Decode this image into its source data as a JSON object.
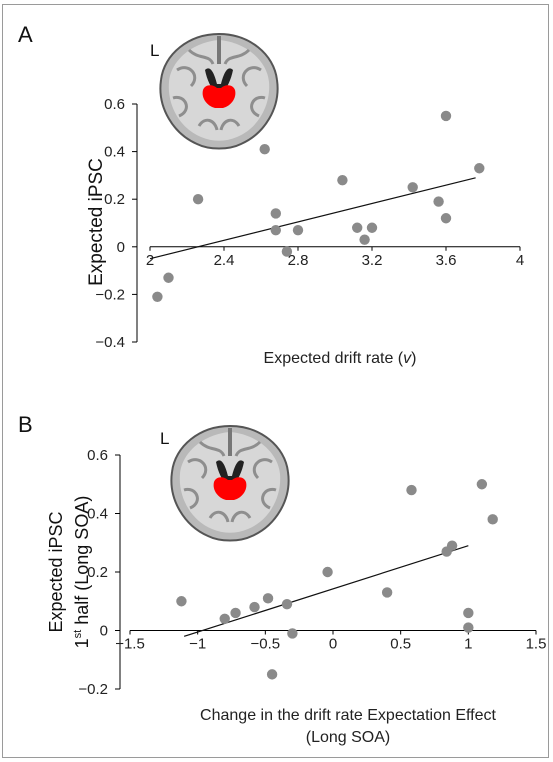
{
  "figure": {
    "border_color": "#9a9a9a"
  },
  "chart_data": [
    {
      "panel": "A",
      "type": "scatter",
      "inset_label": "L",
      "highlight_color": "#ff0000",
      "point_color": "#8a8a8a",
      "xlabel_parts": [
        "Expected drift rate (",
        "v",
        ")"
      ],
      "ylabel": "Expected iPSC",
      "xlim": [
        2,
        4
      ],
      "ylim": [
        -0.4,
        0.6
      ],
      "xticks": [
        2,
        2.4,
        2.8,
        3.2,
        3.6,
        4
      ],
      "xtick_labels": [
        "2",
        "2.4",
        "2.8",
        "3.2",
        "3.6",
        "4"
      ],
      "yticks": [
        -0.4,
        -0.2,
        0,
        0.2,
        0.4,
        0.6
      ],
      "ytick_labels": [
        "−0.4",
        "−0.2",
        "0",
        "0.2",
        "0.4",
        "0.6"
      ],
      "grid": false,
      "points": [
        {
          "x": 2.04,
          "y": -0.21
        },
        {
          "x": 2.1,
          "y": -0.13
        },
        {
          "x": 2.26,
          "y": 0.2
        },
        {
          "x": 2.62,
          "y": 0.41
        },
        {
          "x": 2.68,
          "y": 0.14
        },
        {
          "x": 2.68,
          "y": 0.07
        },
        {
          "x": 2.74,
          "y": -0.02
        },
        {
          "x": 2.8,
          "y": 0.07
        },
        {
          "x": 3.04,
          "y": 0.28
        },
        {
          "x": 3.12,
          "y": 0.08
        },
        {
          "x": 3.16,
          "y": 0.03
        },
        {
          "x": 3.2,
          "y": 0.08
        },
        {
          "x": 3.42,
          "y": 0.25
        },
        {
          "x": 3.56,
          "y": 0.19
        },
        {
          "x": 3.6,
          "y": 0.12
        },
        {
          "x": 3.6,
          "y": 0.55
        },
        {
          "x": 3.78,
          "y": 0.33
        }
      ],
      "fit_line": {
        "x": [
          2.0,
          3.76
        ],
        "y": [
          -0.05,
          0.29
        ]
      }
    },
    {
      "panel": "B",
      "type": "scatter",
      "inset_label": "L",
      "highlight_color": "#ff0000",
      "point_color": "#8a8a8a",
      "xlabel_lines": [
        "Change in the drift rate Expectation Effect",
        "(Long SOA)"
      ],
      "ylabel_line1": "Expected  iPSC",
      "ylabel_line2_prefix": "1",
      "ylabel_line2_sup": "st",
      "ylabel_line2_rest": " half (Long SOA)",
      "xlim": [
        -1.5,
        1.5
      ],
      "ylim": [
        -0.2,
        0.6
      ],
      "xticks": [
        -1.5,
        -1,
        -0.5,
        0,
        0.5,
        1,
        1.5
      ],
      "xtick_labels": [
        "−1.5",
        "−1",
        "−0.5",
        "0",
        "0.5",
        "1",
        "1.5"
      ],
      "yticks": [
        -0.2,
        0,
        0.2,
        0.4,
        0.6
      ],
      "ytick_labels": [
        "−0.2",
        "0",
        "0.2",
        "0.4",
        "0.6"
      ],
      "grid": false,
      "points": [
        {
          "x": -1.12,
          "y": 0.1
        },
        {
          "x": -0.8,
          "y": 0.04
        },
        {
          "x": -0.72,
          "y": 0.06
        },
        {
          "x": -0.58,
          "y": 0.08
        },
        {
          "x": -0.48,
          "y": 0.11
        },
        {
          "x": -0.45,
          "y": -0.15
        },
        {
          "x": -0.34,
          "y": 0.09
        },
        {
          "x": -0.3,
          "y": -0.01
        },
        {
          "x": -0.04,
          "y": 0.2
        },
        {
          "x": 0.4,
          "y": 0.13
        },
        {
          "x": 0.58,
          "y": 0.48
        },
        {
          "x": 0.84,
          "y": 0.27
        },
        {
          "x": 0.88,
          "y": 0.29
        },
        {
          "x": 1.0,
          "y": 0.06
        },
        {
          "x": 1.0,
          "y": 0.01
        },
        {
          "x": 1.1,
          "y": 0.5
        },
        {
          "x": 1.18,
          "y": 0.38
        }
      ],
      "fit_line": {
        "x": [
          -1.1,
          1.0
        ],
        "y": [
          -0.02,
          0.29
        ]
      }
    }
  ]
}
